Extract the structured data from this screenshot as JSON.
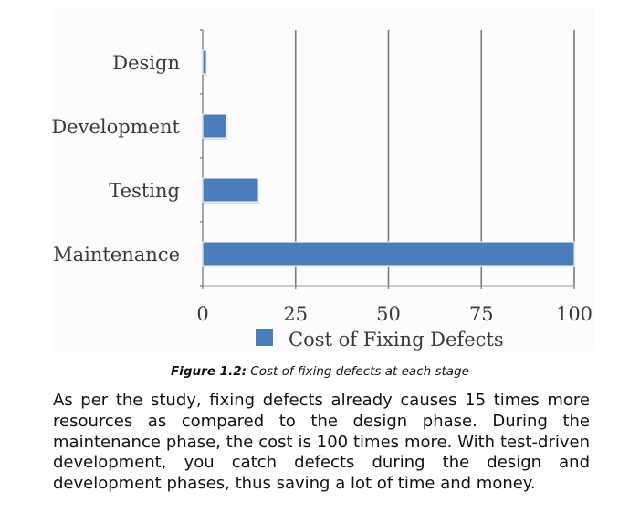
{
  "chart_data": {
    "type": "bar",
    "orientation": "horizontal",
    "categories": [
      "Design",
      "Development",
      "Testing",
      "Maintenance"
    ],
    "series": [
      {
        "name": "Cost of Fixing Defects",
        "values": [
          1,
          6.5,
          15,
          100
        ]
      }
    ],
    "xlim": [
      0,
      100
    ],
    "xticks": [
      0,
      25,
      50,
      75,
      100
    ],
    "grid": "vertical",
    "legend": "bottom",
    "bar_color": "#4a7ebb"
  },
  "figure": {
    "label": "Figure 1.2:",
    "caption": "Cost of fixing defects at each stage"
  },
  "paragraph": "As per the study, fixing defects already causes 15 times more resources as compared to the design phase. During the maintenance phase, the cost is 100 times more. With test-driven development, you catch defects during the design and development phases, thus saving a lot of time and money."
}
